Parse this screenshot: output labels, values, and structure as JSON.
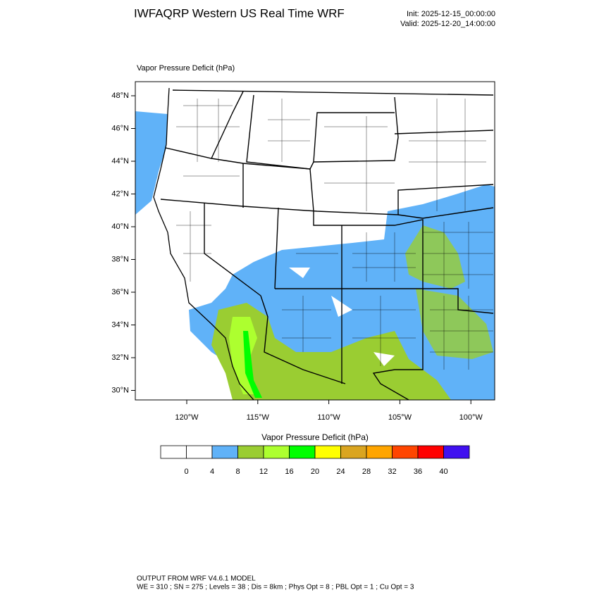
{
  "header": {
    "title": "IWFAQRP Western US Real Time WRF",
    "init": "Init: 2025-12-15_00:00:00",
    "valid": "Valid: 2025-12-20_14:00:00"
  },
  "map": {
    "field_label": "Vapor Pressure Deficit   (hPa)",
    "lat_labels": [
      "48°N",
      "46°N",
      "44°N",
      "42°N",
      "40°N",
      "38°N",
      "36°N",
      "34°N",
      "32°N",
      "30°N"
    ],
    "lon_labels": [
      "120°W",
      "115°W",
      "110°W",
      "105°W",
      "100°W"
    ]
  },
  "colorbar": {
    "title": "Vapor Pressure Deficit  (hPa)",
    "colors": [
      "#ffffff",
      "#ffffff",
      "#60b2f8",
      "#9acd32",
      "#adff2f",
      "#00ff00",
      "#ffff00",
      "#daa520",
      "#ffa500",
      "#ff4500",
      "#ff0000",
      "#4010f0"
    ],
    "levels": [
      0,
      4,
      8,
      12,
      16,
      20,
      24,
      28,
      32,
      36,
      40
    ]
  },
  "footer": {
    "line1": "OUTPUT FROM WRF V4.6.1 MODEL",
    "line2": "WE = 310 ; SN = 275 ; Levels = 38 ; Dis = 8km ; Phys Opt = 8 ; PBL Opt = 1 ; Cu Opt = 3"
  }
}
